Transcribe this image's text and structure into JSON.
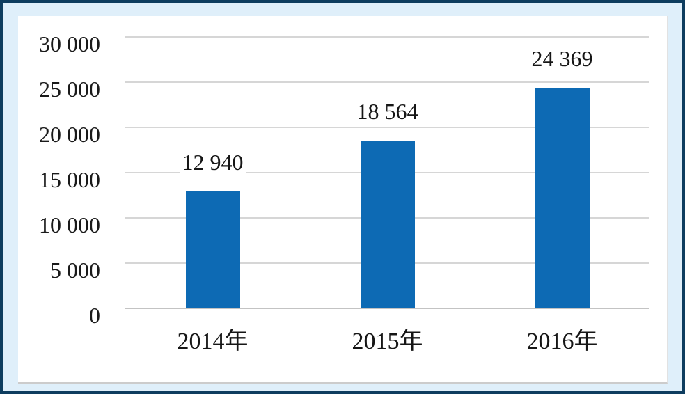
{
  "colors": {
    "frame_border": "#0E3D5F",
    "frame_background": "#DFEFFA",
    "panel_background": "#FFFFFF",
    "bar_color": "#0D6AB4",
    "gridline_color": "#D6D6D6",
    "axis_color": "#C3C3C3",
    "text_color": "#1A1A1A"
  },
  "chart_data": {
    "type": "bar",
    "title": "",
    "xlabel": "",
    "ylabel": "",
    "categories": [
      "2014年",
      "2015年",
      "2016年"
    ],
    "values": [
      12940,
      18564,
      24369
    ],
    "value_labels": [
      "12 940",
      "18 564",
      "24 369"
    ],
    "y_ticks": [
      0,
      5000,
      10000,
      15000,
      20000,
      25000,
      30000
    ],
    "y_tick_labels": [
      "0",
      "5 000",
      "10 000",
      "15 000",
      "20 000",
      "25 000",
      "30 000"
    ],
    "ylim": [
      0,
      30000
    ],
    "grid": "horizontal",
    "legend": "none",
    "bar_color": "#0D6AB4"
  }
}
